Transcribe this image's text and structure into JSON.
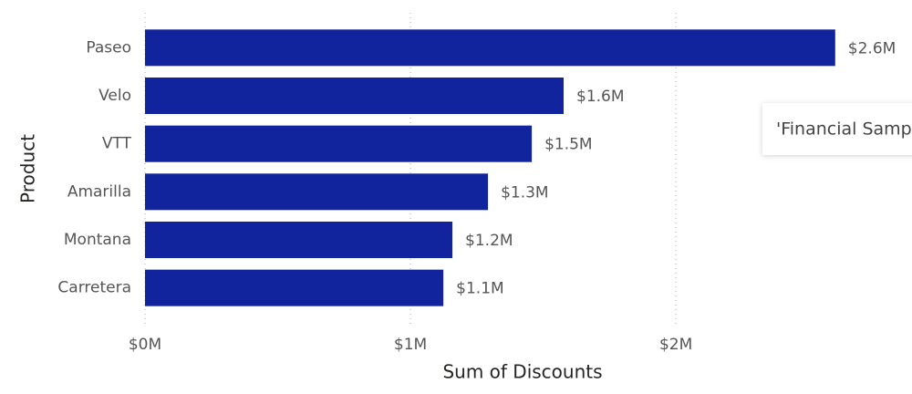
{
  "chart_data": {
    "type": "bar",
    "orientation": "horizontal",
    "x_label": "Sum of Discounts",
    "y_label": "Product",
    "categories": [
      "Paseo",
      "Velo",
      "VTT",
      "Amarilla",
      "Montana",
      "Carretera"
    ],
    "values": [
      2600000,
      1577000,
      1457000,
      1292000,
      1158000,
      1124000
    ],
    "value_labels": [
      "$2.6M",
      "$1.6M",
      "$1.5M",
      "$1.3M",
      "$1.2M",
      "$1.1M"
    ],
    "color": "#12239e",
    "xlim": [
      0,
      2800000
    ],
    "xticks": [
      {
        "value": 0,
        "label": "$0M"
      },
      {
        "value": 1000000,
        "label": "$1M"
      },
      {
        "value": 2000000,
        "label": "$2M"
      }
    ],
    "grid": true
  },
  "tooltip": "'Financial Samp"
}
